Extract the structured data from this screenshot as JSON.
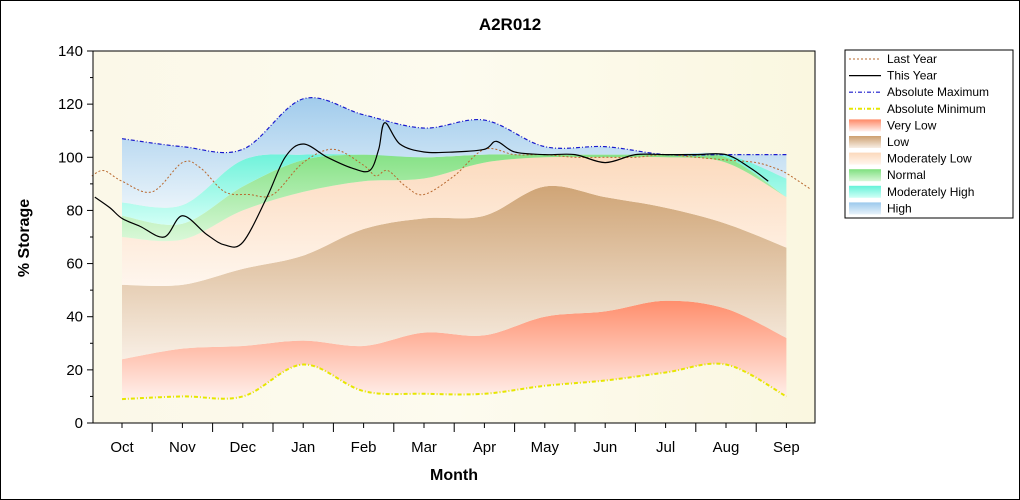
{
  "chart_data": {
    "type": "area",
    "title": "A2R012",
    "xlabel": "Month",
    "ylabel": "% Storage",
    "ylim": [
      0,
      140
    ],
    "yticks": [
      "0",
      "20",
      "40",
      "60",
      "80",
      "100",
      "120",
      "140"
    ],
    "categories": [
      "Oct",
      "Nov",
      "Dec",
      "Jan",
      "Feb",
      "Mar",
      "Apr",
      "May",
      "Jun",
      "Jul",
      "Aug",
      "Sep"
    ],
    "legend_position": "right",
    "grid": false,
    "bands": {
      "x": [
        0,
        1,
        2,
        3,
        4,
        5,
        6,
        7,
        8,
        9,
        10,
        11
      ],
      "bounds": [
        [
          9,
          10,
          10,
          22,
          12,
          11,
          11,
          14,
          16,
          19,
          22,
          10
        ],
        [
          24,
          28,
          29,
          31,
          29,
          34,
          33,
          40,
          42,
          46,
          43,
          32
        ],
        [
          52,
          52,
          58,
          63,
          73,
          77,
          78,
          89,
          85,
          81,
          75,
          66
        ],
        [
          70,
          69,
          80,
          87,
          91,
          92,
          98,
          100,
          100,
          100,
          98,
          85
        ],
        [
          78,
          75,
          89,
          99,
          101,
          100,
          101,
          101,
          101,
          101,
          100,
          85
        ],
        [
          83,
          82,
          99,
          101,
          101,
          100,
          101,
          101,
          101,
          101,
          101,
          92
        ],
        [
          107,
          104,
          103,
          122,
          116,
          111,
          114,
          104,
          104,
          101,
          101,
          101
        ]
      ]
    },
    "band_names": [
      "Very Low",
      "Low",
      "Moderately Low",
      "Normal",
      "Moderately High",
      "High"
    ],
    "series": [
      {
        "name": "Last Year",
        "x": [
          -0.5,
          -0.3,
          0,
          0.5,
          1,
          1.3,
          1.7,
          2.1,
          2.5,
          3,
          3.5,
          4,
          4.2,
          4.4,
          4.7,
          5,
          5.5,
          6,
          6.5,
          7,
          7.5,
          8,
          8.5,
          9,
          9.5,
          10,
          10.5,
          10.8,
          11,
          11.4
        ],
        "y": [
          93,
          95,
          91,
          87,
          98,
          96,
          87,
          86,
          86,
          98,
          103,
          97,
          93,
          95,
          89,
          86,
          93,
          103,
          101,
          101,
          100,
          100,
          100,
          101,
          100,
          99,
          98,
          96,
          94,
          88
        ]
      },
      {
        "name": "This Year",
        "x": [
          -0.45,
          -0.2,
          0,
          0.3,
          0.7,
          1.0,
          1.4,
          1.7,
          2.0,
          2.4,
          2.7,
          3.0,
          3.4,
          3.8,
          4.1,
          4.25,
          4.35,
          4.6,
          5.0,
          5.5,
          6.0,
          6.2,
          6.5,
          7.0,
          7.5,
          8.0,
          8.5,
          9.0,
          9.5,
          10.0,
          10.4,
          10.7
        ],
        "y": [
          85,
          81,
          77,
          74,
          70,
          78,
          71,
          67,
          68,
          85,
          100,
          105,
          100,
          96,
          95,
          103,
          113,
          105,
          102,
          102,
          103,
          106,
          102,
          101,
          101,
          98,
          101,
          101,
          101,
          101,
          96,
          91
        ]
      },
      {
        "name": "Absolute Maximum",
        "x": [
          0,
          1,
          2,
          3,
          4,
          5,
          6,
          7,
          8,
          9,
          10,
          11
        ],
        "y": [
          107,
          104,
          103,
          122,
          116,
          111,
          114,
          104,
          104,
          101,
          101,
          101
        ]
      },
      {
        "name": "Absolute Minimum",
        "x": [
          0,
          1,
          2,
          3,
          4,
          5,
          6,
          7,
          8,
          9,
          10,
          11
        ],
        "y": [
          9,
          10,
          10,
          22,
          12,
          11,
          11,
          14,
          16,
          19,
          22,
          10
        ]
      }
    ],
    "legend": [
      "Last Year",
      "This Year",
      "Absolute Maximum",
      "Absolute Minimum",
      "Very Low",
      "Low",
      "Moderately Low",
      "Normal",
      "Moderately High",
      "High"
    ],
    "colors": {
      "last_year": "#b8682e",
      "this_year": "#000000",
      "abs_max": "#1a1acc",
      "abs_min": "#e6e600",
      "very_low": "#ff8a66",
      "low": "#d2a97a",
      "moderately_low": "#fde3cc",
      "normal": "#8fe88f",
      "moderately_high": "#7ff5e0",
      "high": "#a9d1ee",
      "plot_bg": "#fffde6"
    }
  }
}
